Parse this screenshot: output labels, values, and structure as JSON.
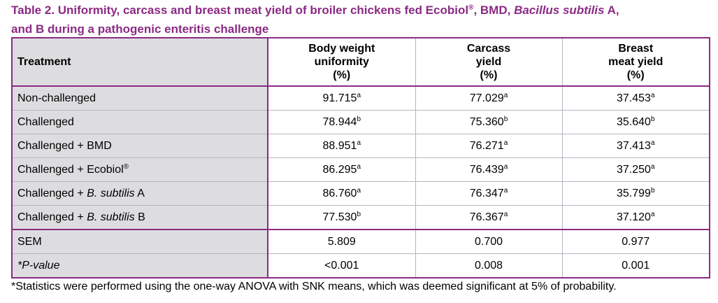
{
  "title": {
    "part1": "Table 2.  Uniformity, carcass and breast meat yield of broiler chickens fed Ecobiol",
    "reg": "®",
    "part2": ", BMD, ",
    "italic": "Bacillus subtilis",
    "part3": " A,",
    "line2": "and B during a pathogenic enteritis challenge"
  },
  "header": {
    "treatment": "Treatment",
    "col1": [
      "Body weight",
      "uniformity",
      "(%)"
    ],
    "col2": [
      "Carcass",
      "yield",
      "(%)"
    ],
    "col3": [
      "Breast",
      "meat yield",
      "(%)"
    ]
  },
  "rows": [
    {
      "label": "Non-challenged",
      "v1": "91.715",
      "s1": "a",
      "v2": "77.029",
      "s2": "a",
      "v3": "37.453",
      "s3": "a"
    },
    {
      "label": "Challenged",
      "v1": "78.944",
      "s1": "b",
      "v2": "75.360",
      "s2": "b",
      "v3": "35.640",
      "s3": "b"
    },
    {
      "label": "Challenged + BMD",
      "v1": "88.951",
      "s1": "a",
      "v2": "76.271",
      "s2": "a",
      "v3": "37.413",
      "s3": "a"
    },
    {
      "label_pre": "Challenged + Ecobiol",
      "label_sup": "®",
      "v1": "86.295",
      "s1": "a",
      "v2": "76.439",
      "s2": "a",
      "v3": "37.250",
      "s3": "a"
    },
    {
      "label_pre": "Challenged + ",
      "label_it": "B. subtilis",
      "label_post": " A",
      "v1": "86.760",
      "s1": "a",
      "v2": "76.347",
      "s2": "a",
      "v3": "35.799",
      "s3": "b"
    },
    {
      "label_pre": "Challenged + ",
      "label_it": "B. subtilis",
      "label_post": " B",
      "v1": "77.530",
      "s1": "b",
      "v2": "76.367",
      "s2": "a",
      "v3": "37.120",
      "s3": "a"
    }
  ],
  "sem": {
    "label": "SEM",
    "v1": "5.809",
    "v2": "0.700",
    "v3": "0.977"
  },
  "pvalue": {
    "label": "*P-value",
    "v1": "<0.001",
    "v2": "0.008",
    "v3": "0.001"
  },
  "footnote": "*Statistics were performed using the one-way ANOVA with SNK means, which was deemed significant at 5% of probability.",
  "colors": {
    "title": "#8b2a83",
    "border": "#8b2a83",
    "label_bg": "#dddde0"
  }
}
